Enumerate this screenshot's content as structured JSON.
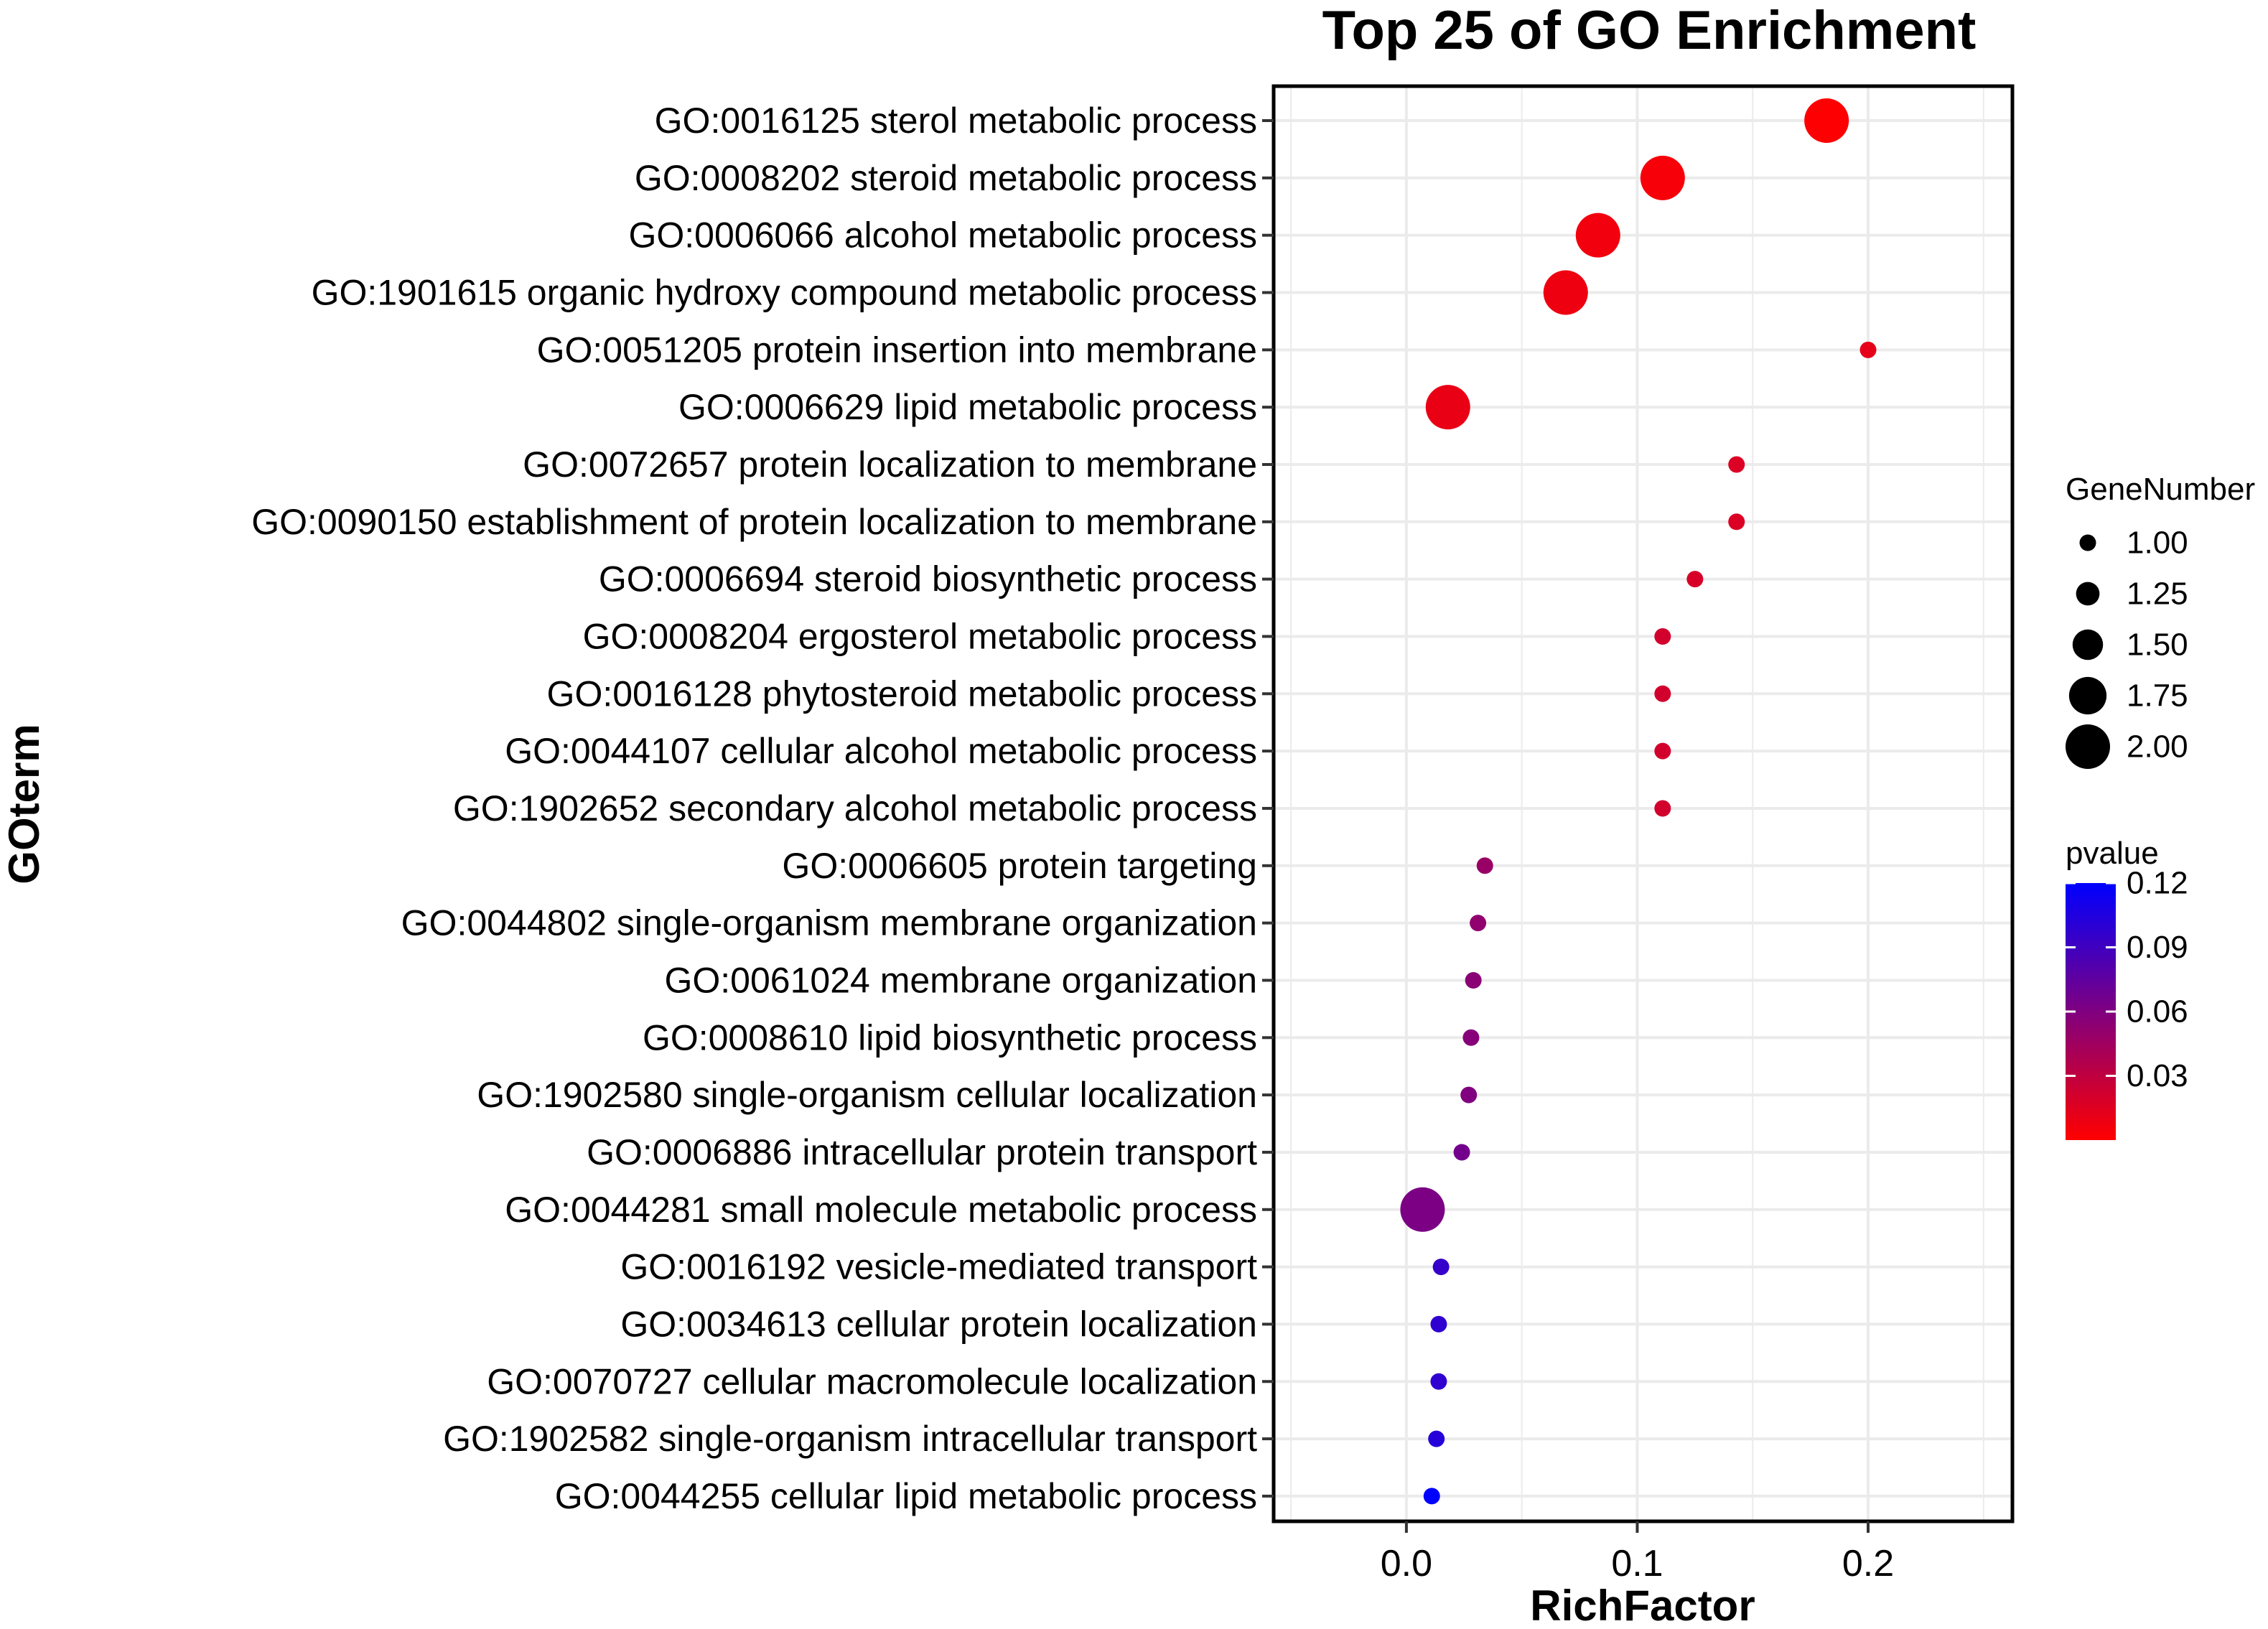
{
  "chart_data": {
    "type": "scatter",
    "title": "Top 25 of GO Enrichment",
    "xlabel": "RichFactor",
    "ylabel": "GOterm",
    "xlim": [
      -0.0575,
      0.2625
    ],
    "xticks": [
      0.0,
      0.1,
      0.2
    ],
    "xtick_labels": [
      "0.0",
      "0.1",
      "0.2"
    ],
    "grid": true,
    "points": [
      {
        "term": "GO:0016125 sterol metabolic process",
        "rich_factor": 0.182,
        "gene_number": 2,
        "pvalue": 0.001
      },
      {
        "term": "GO:0008202 steroid metabolic process",
        "rich_factor": 0.111,
        "gene_number": 2,
        "pvalue": 0.004
      },
      {
        "term": "GO:0006066 alcohol metabolic process",
        "rich_factor": 0.083,
        "gene_number": 2,
        "pvalue": 0.006
      },
      {
        "term": "GO:1901615 organic hydroxy compound metabolic process",
        "rich_factor": 0.069,
        "gene_number": 2,
        "pvalue": 0.008
      },
      {
        "term": "GO:0051205 protein insertion into membrane",
        "rich_factor": 0.2,
        "gene_number": 1,
        "pvalue": 0.012
      },
      {
        "term": "GO:0006629 lipid metabolic process",
        "rich_factor": 0.018,
        "gene_number": 2,
        "pvalue": 0.01
      },
      {
        "term": "GO:0072657 protein localization to membrane",
        "rich_factor": 0.143,
        "gene_number": 1,
        "pvalue": 0.017
      },
      {
        "term": "GO:0090150 establishment of protein localization to membrane",
        "rich_factor": 0.143,
        "gene_number": 1,
        "pvalue": 0.017
      },
      {
        "term": "GO:0006694 steroid biosynthetic process",
        "rich_factor": 0.125,
        "gene_number": 1,
        "pvalue": 0.019
      },
      {
        "term": "GO:0008204 ergosterol metabolic process",
        "rich_factor": 0.111,
        "gene_number": 1,
        "pvalue": 0.021
      },
      {
        "term": "GO:0016128 phytosteroid metabolic process",
        "rich_factor": 0.111,
        "gene_number": 1,
        "pvalue": 0.021
      },
      {
        "term": "GO:0044107 cellular alcohol metabolic process",
        "rich_factor": 0.111,
        "gene_number": 1,
        "pvalue": 0.021
      },
      {
        "term": "GO:1902652 secondary alcohol metabolic process",
        "rich_factor": 0.111,
        "gene_number": 1,
        "pvalue": 0.021
      },
      {
        "term": "GO:0006605 protein targeting",
        "rich_factor": 0.034,
        "gene_number": 1,
        "pvalue": 0.048
      },
      {
        "term": "GO:0044802 single-organism membrane organization",
        "rich_factor": 0.031,
        "gene_number": 1,
        "pvalue": 0.052
      },
      {
        "term": "GO:0061024 membrane organization",
        "rich_factor": 0.029,
        "gene_number": 1,
        "pvalue": 0.055
      },
      {
        "term": "GO:0008610 lipid biosynthetic process",
        "rich_factor": 0.028,
        "gene_number": 1,
        "pvalue": 0.057
      },
      {
        "term": "GO:1902580 single-organism cellular localization",
        "rich_factor": 0.027,
        "gene_number": 1,
        "pvalue": 0.06
      },
      {
        "term": "GO:0006886 intracellular protein transport",
        "rich_factor": 0.024,
        "gene_number": 1,
        "pvalue": 0.066
      },
      {
        "term": "GO:0044281 small molecule metabolic process",
        "rich_factor": 0.007,
        "gene_number": 2,
        "pvalue": 0.062
      },
      {
        "term": "GO:0016192 vesicle-mediated transport",
        "rich_factor": 0.015,
        "gene_number": 1,
        "pvalue": 0.095
      },
      {
        "term": "GO:0034613 cellular protein localization",
        "rich_factor": 0.014,
        "gene_number": 1,
        "pvalue": 0.098
      },
      {
        "term": "GO:0070727 cellular macromolecule localization",
        "rich_factor": 0.014,
        "gene_number": 1,
        "pvalue": 0.098
      },
      {
        "term": "GO:1902582 single-organism intracellular transport",
        "rich_factor": 0.013,
        "gene_number": 1,
        "pvalue": 0.102
      },
      {
        "term": "GO:0044255 cellular lipid metabolic process",
        "rich_factor": 0.011,
        "gene_number": 1,
        "pvalue": 0.12
      }
    ],
    "legend_size": {
      "title": "GeneNumber",
      "values": [
        1.0,
        1.25,
        1.5,
        1.75,
        2.0
      ],
      "labels": [
        "1.00",
        "1.25",
        "1.50",
        "1.75",
        "2.00"
      ]
    },
    "legend_color": {
      "title": "pvalue",
      "range": [
        0.0,
        0.12
      ],
      "ticks": [
        0.03,
        0.06,
        0.09,
        0.12
      ],
      "tick_labels": [
        "0.03",
        "0.06",
        "0.09",
        "0.12"
      ],
      "low_color": "#FF0000",
      "high_color": "#0000FF"
    }
  },
  "colors": {
    "panel_background": "#FFFFFF",
    "grid": "#EBEBEB",
    "border": "#000000"
  }
}
